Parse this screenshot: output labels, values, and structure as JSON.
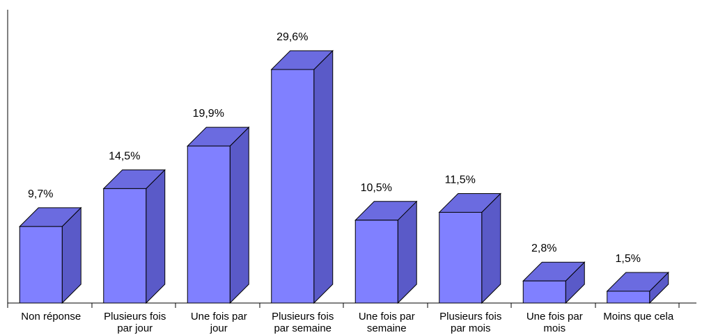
{
  "chart_data": {
    "type": "bar",
    "style": "3d-columns",
    "categories": [
      [
        "Non réponse"
      ],
      [
        "Plusieurs fois",
        "par jour"
      ],
      [
        "Une fois par",
        "jour"
      ],
      [
        "Plusieurs fois",
        "par semaine"
      ],
      [
        "Une fois par",
        "semaine"
      ],
      [
        "Plusieurs fois",
        "par mois"
      ],
      [
        "Une fois par",
        "mois"
      ],
      [
        "Moins que cela"
      ]
    ],
    "values": [
      9.7,
      14.5,
      19.9,
      29.6,
      10.5,
      11.5,
      2.8,
      1.5
    ],
    "value_labels": [
      "9,7%",
      "14,5%",
      "19,9%",
      "29,6%",
      "10,5%",
      "11,5%",
      "2,8%",
      "1,5%"
    ],
    "unit": "%",
    "ylim": [
      0,
      34
    ],
    "grid": false,
    "legend": "none",
    "colors": {
      "front": "#8080ff",
      "top": "#6b6be0",
      "side": "#5a5ac8",
      "outline": "#000000"
    }
  }
}
